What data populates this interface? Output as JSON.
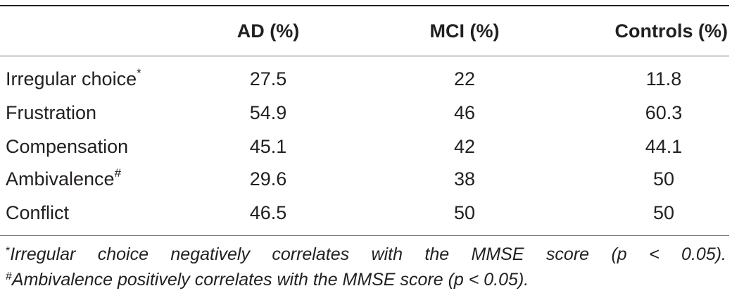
{
  "table": {
    "headers": [
      "",
      "AD (%)",
      "MCI (%)",
      "Controls (%)"
    ],
    "rows": [
      {
        "label": "Irregular choice",
        "mark": "*",
        "values": [
          "27.5",
          "22",
          "11.8"
        ]
      },
      {
        "label": "Frustration",
        "mark": "",
        "values": [
          "54.9",
          "46",
          "60.3"
        ]
      },
      {
        "label": "Compensation",
        "mark": "",
        "values": [
          "45.1",
          "42",
          "44.1"
        ]
      },
      {
        "label": "Ambivalence",
        "mark": "#",
        "values": [
          "29.6",
          "38",
          "50"
        ]
      },
      {
        "label": "Conflict",
        "mark": "",
        "values": [
          "46.5",
          "50",
          "50"
        ]
      }
    ]
  },
  "footnotes": [
    {
      "mark": "*",
      "text": "Irregular choice negatively correlates with the MMSE score (p < 0.05)."
    },
    {
      "mark": "#",
      "text": "Ambivalence positively correlates with the MMSE score (p < 0.05)."
    }
  ]
}
